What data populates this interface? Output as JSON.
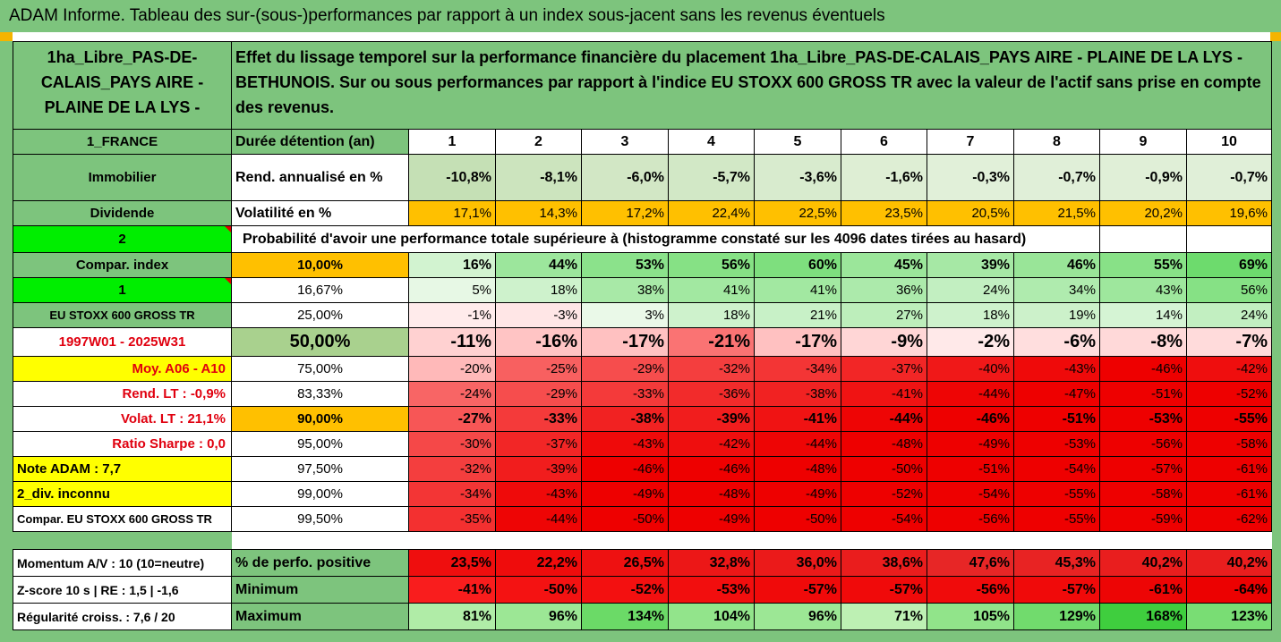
{
  "header": {
    "title": "ADAM Informe. Tableau des sur-(sous-)performances par rapport à un index sous-jacent sans les revenus éventuels"
  },
  "asset_name": "1ha_Libre_PAS-DE-CALAIS_PAYS AIRE - PLAINE DE LA LYS -",
  "description": "Effet du lissage temporel sur la performance financière du placement 1ha_Libre_PAS-DE-CALAIS_PAYS AIRE - PLAINE DE LA LYS - BETHUNOIS. Sur ou sous performances par rapport à l'indice EU STOXX 600 GROSS TR avec la valeur de l'actif sans prise en compte des revenus.",
  "left_labels": {
    "country": "1_FRANCE",
    "type": "Immobilier",
    "dividend": "Dividende",
    "num2": "2",
    "compar_index": "Compar. index",
    "num1": "1",
    "index_name": "EU STOXX 600 GROSS TR",
    "period": "1997W01 - 2025W31",
    "moy": "Moy. A06 - A10",
    "rend_lt": "Rend. LT :   -0,9%",
    "volat_lt": "Volat. LT :   21,1%",
    "sharpe": "Ratio Sharpe :   0,0",
    "note": "Note ADAM : 7,7",
    "div": "2_div. inconnu",
    "compar_eu": "Compar. EU STOXX 600 GROSS TR",
    "momentum": "Momentum A/V : 10 (10=neutre)",
    "zscore": "Z-score 10 s  | RE : 1,5  | -1,6",
    "regularite": "Régularité croiss. : 7,6 / 20"
  },
  "stats_labels": {
    "duree": "Durée détention (an)",
    "rend": "Rend. annualisé en %",
    "volat": "Volatilité en %",
    "prob": "Probabilité d'avoir une performance totale supérieure à (histogramme constaté sur les 4096 dates tirées au hasard)",
    "pct_pos": "% de perfo. positive",
    "minimum": "Minimum",
    "maximum": "Maximum"
  },
  "years": [
    "1",
    "2",
    "3",
    "4",
    "5",
    "6",
    "7",
    "8",
    "9",
    "10"
  ],
  "rend": [
    "-10,8%",
    "-8,1%",
    "-6,0%",
    "-5,7%",
    "-3,6%",
    "-1,6%",
    "-0,3%",
    "-0,7%",
    "-0,9%",
    "-0,7%"
  ],
  "volat": [
    "17,1%",
    "14,3%",
    "17,2%",
    "22,4%",
    "22,5%",
    "23,5%",
    "20,5%",
    "21,5%",
    "20,2%",
    "19,6%"
  ],
  "quantiles": [
    {
      "label": "10,00%",
      "values": [
        "16%",
        "44%",
        "53%",
        "56%",
        "60%",
        "45%",
        "39%",
        "46%",
        "55%",
        "69%"
      ]
    },
    {
      "label": "16,67%",
      "values": [
        "5%",
        "18%",
        "38%",
        "41%",
        "41%",
        "36%",
        "24%",
        "34%",
        "43%",
        "56%"
      ]
    },
    {
      "label": "25,00%",
      "values": [
        "-1%",
        "-3%",
        "3%",
        "18%",
        "21%",
        "27%",
        "18%",
        "19%",
        "14%",
        "24%"
      ]
    },
    {
      "label": "50,00%",
      "values": [
        "-11%",
        "-16%",
        "-17%",
        "-21%",
        "-17%",
        "-9%",
        "-2%",
        "-6%",
        "-8%",
        "-7%"
      ]
    },
    {
      "label": "75,00%",
      "values": [
        "-20%",
        "-25%",
        "-29%",
        "-32%",
        "-34%",
        "-37%",
        "-40%",
        "-43%",
        "-46%",
        "-42%"
      ]
    },
    {
      "label": "83,33%",
      "values": [
        "-24%",
        "-29%",
        "-33%",
        "-36%",
        "-38%",
        "-41%",
        "-44%",
        "-47%",
        "-51%",
        "-52%"
      ]
    },
    {
      "label": "90,00%",
      "values": [
        "-27%",
        "-33%",
        "-38%",
        "-39%",
        "-41%",
        "-44%",
        "-46%",
        "-51%",
        "-53%",
        "-55%"
      ]
    },
    {
      "label": "95,00%",
      "values": [
        "-30%",
        "-37%",
        "-43%",
        "-42%",
        "-44%",
        "-48%",
        "-49%",
        "-53%",
        "-56%",
        "-58%"
      ]
    },
    {
      "label": "97,50%",
      "values": [
        "-32%",
        "-39%",
        "-46%",
        "-46%",
        "-48%",
        "-50%",
        "-51%",
        "-54%",
        "-57%",
        "-61%"
      ]
    },
    {
      "label": "99,00%",
      "values": [
        "-34%",
        "-43%",
        "-49%",
        "-48%",
        "-49%",
        "-52%",
        "-54%",
        "-55%",
        "-58%",
        "-61%"
      ]
    },
    {
      "label": "99,50%",
      "values": [
        "-35%",
        "-44%",
        "-50%",
        "-49%",
        "-50%",
        "-54%",
        "-56%",
        "-55%",
        "-59%",
        "-62%"
      ]
    }
  ],
  "pct_pos": [
    "23,5%",
    "22,2%",
    "26,5%",
    "32,8%",
    "36,0%",
    "38,6%",
    "47,6%",
    "45,3%",
    "40,2%",
    "40,2%"
  ],
  "minimum": [
    "-41%",
    "-50%",
    "-52%",
    "-53%",
    "-57%",
    "-57%",
    "-56%",
    "-57%",
    "-61%",
    "-64%"
  ],
  "maximum": [
    "81%",
    "96%",
    "134%",
    "104%",
    "96%",
    "71%",
    "105%",
    "129%",
    "168%",
    "123%"
  ]
}
